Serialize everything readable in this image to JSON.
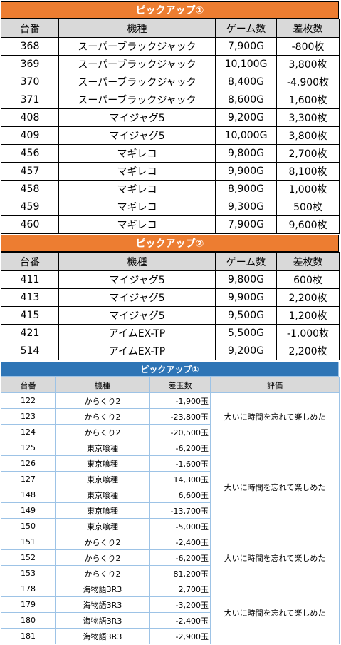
{
  "table1": {
    "title": "ピックアップ①",
    "headers": [
      "台番",
      "機種",
      "ゲーム数",
      "差枚数"
    ],
    "rows": [
      [
        "368",
        "スーパーブラックジャック",
        "7,900G",
        "-800枚"
      ],
      [
        "369",
        "スーパーブラックジャック",
        "10,100G",
        "3,800枚"
      ],
      [
        "370",
        "スーパーブラックジャック",
        "8,400G",
        "-4,900枚"
      ],
      [
        "371",
        "スーパーブラックジャック",
        "8,600G",
        "1,600枚"
      ],
      [
        "408",
        "マイジャグ5",
        "9,200G",
        "3,300枚"
      ],
      [
        "409",
        "マイジャグ5",
        "10,000G",
        "3,800枚"
      ],
      [
        "456",
        "マギレコ",
        "9,800G",
        "2,700枚"
      ],
      [
        "457",
        "マギレコ",
        "9,900G",
        "8,100枚"
      ],
      [
        "458",
        "マギレコ",
        "8,900G",
        "1,000枚"
      ],
      [
        "459",
        "マギレコ",
        "9,300G",
        "500枚"
      ],
      [
        "460",
        "マギレコ",
        "7,900G",
        "9,600枚"
      ]
    ]
  },
  "table2": {
    "title": "ピックアップ②",
    "headers": [
      "台番",
      "機種",
      "ゲーム数",
      "差枚数"
    ],
    "rows": [
      [
        "411",
        "マイジャグ5",
        "9,800G",
        "600枚"
      ],
      [
        "413",
        "マイジャグ5",
        "9,900G",
        "2,200枚"
      ],
      [
        "415",
        "マイジャグ5",
        "9,500G",
        "1,200枚"
      ],
      [
        "421",
        "アイムEX-TP",
        "5,500G",
        "-1,000枚"
      ],
      [
        "514",
        "アイムEX-TP",
        "9,200G",
        "2,200枚"
      ]
    ]
  },
  "table3": {
    "title": "ピックアップ①",
    "headers": [
      "台番",
      "機種",
      "差玉数",
      "評価"
    ],
    "groups": [
      {
        "evaluation": "大いに時間を忘れて楽しめた",
        "rows": [
          [
            "122",
            "からくり2",
            "-1,900玉"
          ],
          [
            "123",
            "からくり2",
            "-23,800玉"
          ],
          [
            "124",
            "からくり2",
            "-20,500玉"
          ]
        ]
      },
      {
        "evaluation": "大いに時間を忘れて楽しめた",
        "rows": [
          [
            "125",
            "東京喰種",
            "-6,200玉"
          ],
          [
            "126",
            "東京喰種",
            "-1,600玉"
          ],
          [
            "127",
            "東京喰種",
            "14,300玉"
          ],
          [
            "148",
            "東京喰種",
            "6,600玉"
          ],
          [
            "149",
            "東京喰種",
            "-13,700玉"
          ],
          [
            "150",
            "東京喰種",
            "-5,000玉"
          ]
        ]
      },
      {
        "evaluation": "大いに時間を忘れて楽しめた",
        "rows": [
          [
            "151",
            "からくり2",
            "-2,400玉"
          ],
          [
            "152",
            "からくり2",
            "-6,200玉"
          ],
          [
            "153",
            "からくり2",
            "81,200玉"
          ]
        ]
      },
      {
        "evaluation": "大いに時間を忘れて楽しめた",
        "rows": [
          [
            "178",
            "海物語3R3",
            "2,700玉"
          ],
          [
            "179",
            "海物語3R3",
            "-3,200玉"
          ],
          [
            "180",
            "海物語3R3",
            "-2,400玉"
          ],
          [
            "181",
            "海物語3R3",
            "-2,900玉"
          ]
        ]
      }
    ]
  }
}
